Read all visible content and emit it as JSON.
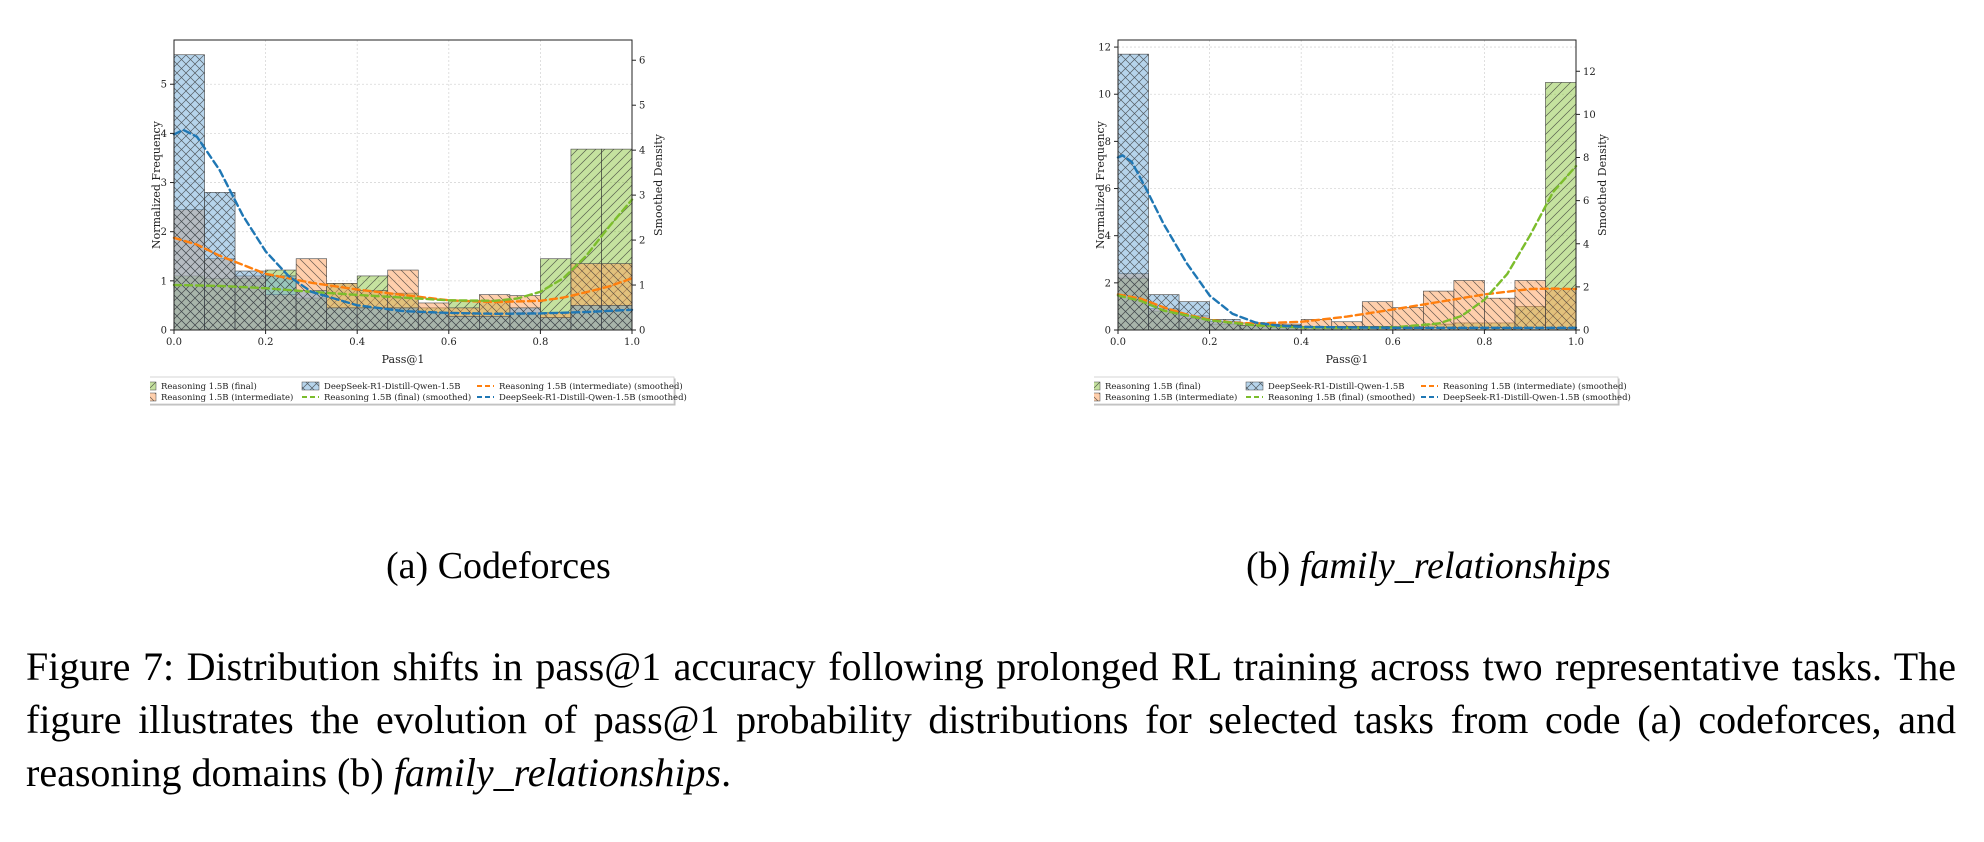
{
  "chart_data": [
    {
      "type": "bar",
      "panel": "a",
      "xlabel": "Pass@1",
      "ylabel": "Normalized Frequency",
      "y2label": "Smoothed Density",
      "xlim": [
        0,
        1.0
      ],
      "ylim": [
        0,
        5.9
      ],
      "y2lim": [
        0,
        6.45
      ],
      "xticks": [
        "0.0",
        "0.2",
        "0.4",
        "0.6",
        "0.8",
        "1.0"
      ],
      "yticks": [
        "0",
        "1",
        "2",
        "3",
        "4",
        "5"
      ],
      "y2ticks": [
        "0",
        "1",
        "2",
        "3",
        "4",
        "5",
        "6"
      ],
      "bins": 15,
      "grid": true,
      "series": [
        {
          "name": "Reasoning 1.5B (final)",
          "kind": "hist",
          "color": "#8cc63f",
          "hatch": "diag",
          "values": [
            1.1,
            1.05,
            1.05,
            1.22,
            0.65,
            0.95,
            1.1,
            0.75,
            0.45,
            0.6,
            0.6,
            0.35,
            1.45,
            3.68,
            3.68
          ]
        },
        {
          "name": "Reasoning 1.5B (intermediate)",
          "kind": "hist",
          "color": "#ff9f5a",
          "hatch": "back",
          "values": [
            2.45,
            1.45,
            1.1,
            0.72,
            1.45,
            0.95,
            0.8,
            1.22,
            0.55,
            0.45,
            0.72,
            0.7,
            0.35,
            1.35,
            1.35
          ]
        },
        {
          "name": "DeepSeek-R1-Distill-Qwen-1.5B",
          "kind": "hist",
          "color": "#6ea9d8",
          "hatch": "cross",
          "values": [
            5.6,
            2.8,
            1.2,
            1.1,
            0.8,
            0.45,
            0.45,
            0.45,
            0.35,
            0.28,
            0.28,
            0.45,
            0.25,
            0.5,
            0.5
          ]
        },
        {
          "name": "Reasoning 1.5B (intermediate) (smoothed)",
          "kind": "line",
          "color": "#ff7f0e",
          "x": [
            0.0,
            0.05,
            0.1,
            0.2,
            0.3,
            0.4,
            0.5,
            0.6,
            0.7,
            0.8,
            0.85,
            0.9,
            0.95,
            1.0
          ],
          "values": [
            2.05,
            1.9,
            1.65,
            1.25,
            1.05,
            0.9,
            0.78,
            0.66,
            0.62,
            0.65,
            0.72,
            0.84,
            0.97,
            1.15
          ]
        },
        {
          "name": "Reasoning 1.5B (final) (smoothed)",
          "kind": "line",
          "color": "#7cbd2c",
          "x": [
            0.0,
            0.1,
            0.2,
            0.3,
            0.4,
            0.5,
            0.6,
            0.7,
            0.75,
            0.8,
            0.85,
            0.9,
            0.95,
            1.0
          ],
          "values": [
            1.0,
            0.98,
            0.93,
            0.85,
            0.78,
            0.72,
            0.66,
            0.65,
            0.7,
            0.85,
            1.15,
            1.65,
            2.3,
            2.9
          ]
        },
        {
          "name": "DeepSeek-R1-Distill-Qwen-1.5B (smoothed)",
          "kind": "line",
          "color": "#1f77b4",
          "x": [
            0.0,
            0.02,
            0.05,
            0.1,
            0.15,
            0.2,
            0.25,
            0.3,
            0.4,
            0.5,
            0.6,
            0.7,
            0.8,
            0.9,
            1.0
          ],
          "values": [
            4.35,
            4.45,
            4.3,
            3.55,
            2.55,
            1.75,
            1.2,
            0.85,
            0.55,
            0.42,
            0.38,
            0.36,
            0.37,
            0.4,
            0.45
          ]
        }
      ]
    },
    {
      "type": "bar",
      "panel": "b",
      "xlabel": "Pass@1",
      "ylabel": "Normalized Frequency",
      "y2label": "Smoothed Density",
      "xlim": [
        0,
        1.0
      ],
      "ylim": [
        0,
        12.3
      ],
      "y2lim": [
        0,
        13.45
      ],
      "xticks": [
        "0.0",
        "0.2",
        "0.4",
        "0.6",
        "0.8",
        "1.0"
      ],
      "yticks": [
        "0",
        "2",
        "4",
        "6",
        "8",
        "10",
        "12"
      ],
      "y2ticks": [
        "0",
        "2",
        "4",
        "6",
        "8",
        "10",
        "12"
      ],
      "bins": 15,
      "grid": true,
      "series": [
        {
          "name": "Reasoning 1.5B (final)",
          "kind": "hist",
          "color": "#8cc63f",
          "hatch": "diag",
          "values": [
            2.2,
            0.8,
            0.5,
            0.25,
            0.2,
            0.15,
            0.15,
            0.15,
            0.15,
            0.15,
            0.25,
            0.3,
            0.3,
            1.0,
            10.5
          ]
        },
        {
          "name": "Reasoning 1.5B (intermediate)",
          "kind": "hist",
          "color": "#ff9f5a",
          "hatch": "back",
          "values": [
            2.4,
            0.9,
            0.6,
            0.35,
            0.3,
            0.25,
            0.45,
            0.35,
            1.2,
            0.95,
            1.65,
            2.1,
            1.35,
            2.1,
            1.75
          ]
        },
        {
          "name": "DeepSeek-R1-Distill-Qwen-1.5B",
          "kind": "hist",
          "color": "#6ea9d8",
          "hatch": "cross",
          "values": [
            11.7,
            1.5,
            1.2,
            0.45,
            0.2,
            0.2,
            0.15,
            0.15,
            0.15,
            0.1,
            0.1,
            0.1,
            0.1,
            0.1,
            0.1
          ]
        },
        {
          "name": "Reasoning 1.5B (intermediate) (smoothed)",
          "kind": "line",
          "color": "#ff7f0e",
          "x": [
            0.0,
            0.05,
            0.1,
            0.15,
            0.2,
            0.25,
            0.3,
            0.4,
            0.5,
            0.6,
            0.7,
            0.8,
            0.9,
            0.95,
            1.0
          ],
          "values": [
            1.65,
            1.45,
            1.05,
            0.72,
            0.48,
            0.35,
            0.3,
            0.38,
            0.62,
            0.95,
            1.3,
            1.65,
            1.9,
            1.92,
            1.9
          ]
        },
        {
          "name": "Reasoning 1.5B (final) (smoothed)",
          "kind": "line",
          "color": "#7cbd2c",
          "x": [
            0.0,
            0.05,
            0.1,
            0.2,
            0.3,
            0.4,
            0.5,
            0.6,
            0.7,
            0.75,
            0.8,
            0.85,
            0.9,
            0.95,
            1.0
          ],
          "values": [
            1.6,
            1.35,
            0.9,
            0.45,
            0.22,
            0.12,
            0.1,
            0.12,
            0.3,
            0.65,
            1.4,
            2.6,
            4.4,
            6.4,
            7.6
          ]
        },
        {
          "name": "DeepSeek-R1-Distill-Qwen-1.5B (smoothed)",
          "kind": "line",
          "color": "#1f77b4",
          "x": [
            0.0,
            0.01,
            0.03,
            0.06,
            0.1,
            0.15,
            0.2,
            0.25,
            0.3,
            0.35,
            0.4,
            0.5,
            0.6,
            0.7,
            0.8,
            0.9,
            1.0
          ],
          "values": [
            8.0,
            8.1,
            7.8,
            6.6,
            4.9,
            3.1,
            1.6,
            0.75,
            0.35,
            0.2,
            0.15,
            0.12,
            0.1,
            0.1,
            0.1,
            0.1,
            0.1
          ]
        }
      ]
    }
  ],
  "subcaptions": {
    "a": {
      "prefix": "(a) ",
      "name": "Codeforces"
    },
    "b": {
      "prefix": "(b) ",
      "name": "family_relationships"
    }
  },
  "figure_caption": {
    "text": "Figure 7:  Distribution shifts in pass@1 accuracy following prolonged RL training across two representative tasks.  The figure illustrates the evolution of pass@1 probability distributions for selected tasks from code (a) codeforces, and reasoning domains (b) ",
    "italic": "family_relationships",
    "end": "."
  }
}
